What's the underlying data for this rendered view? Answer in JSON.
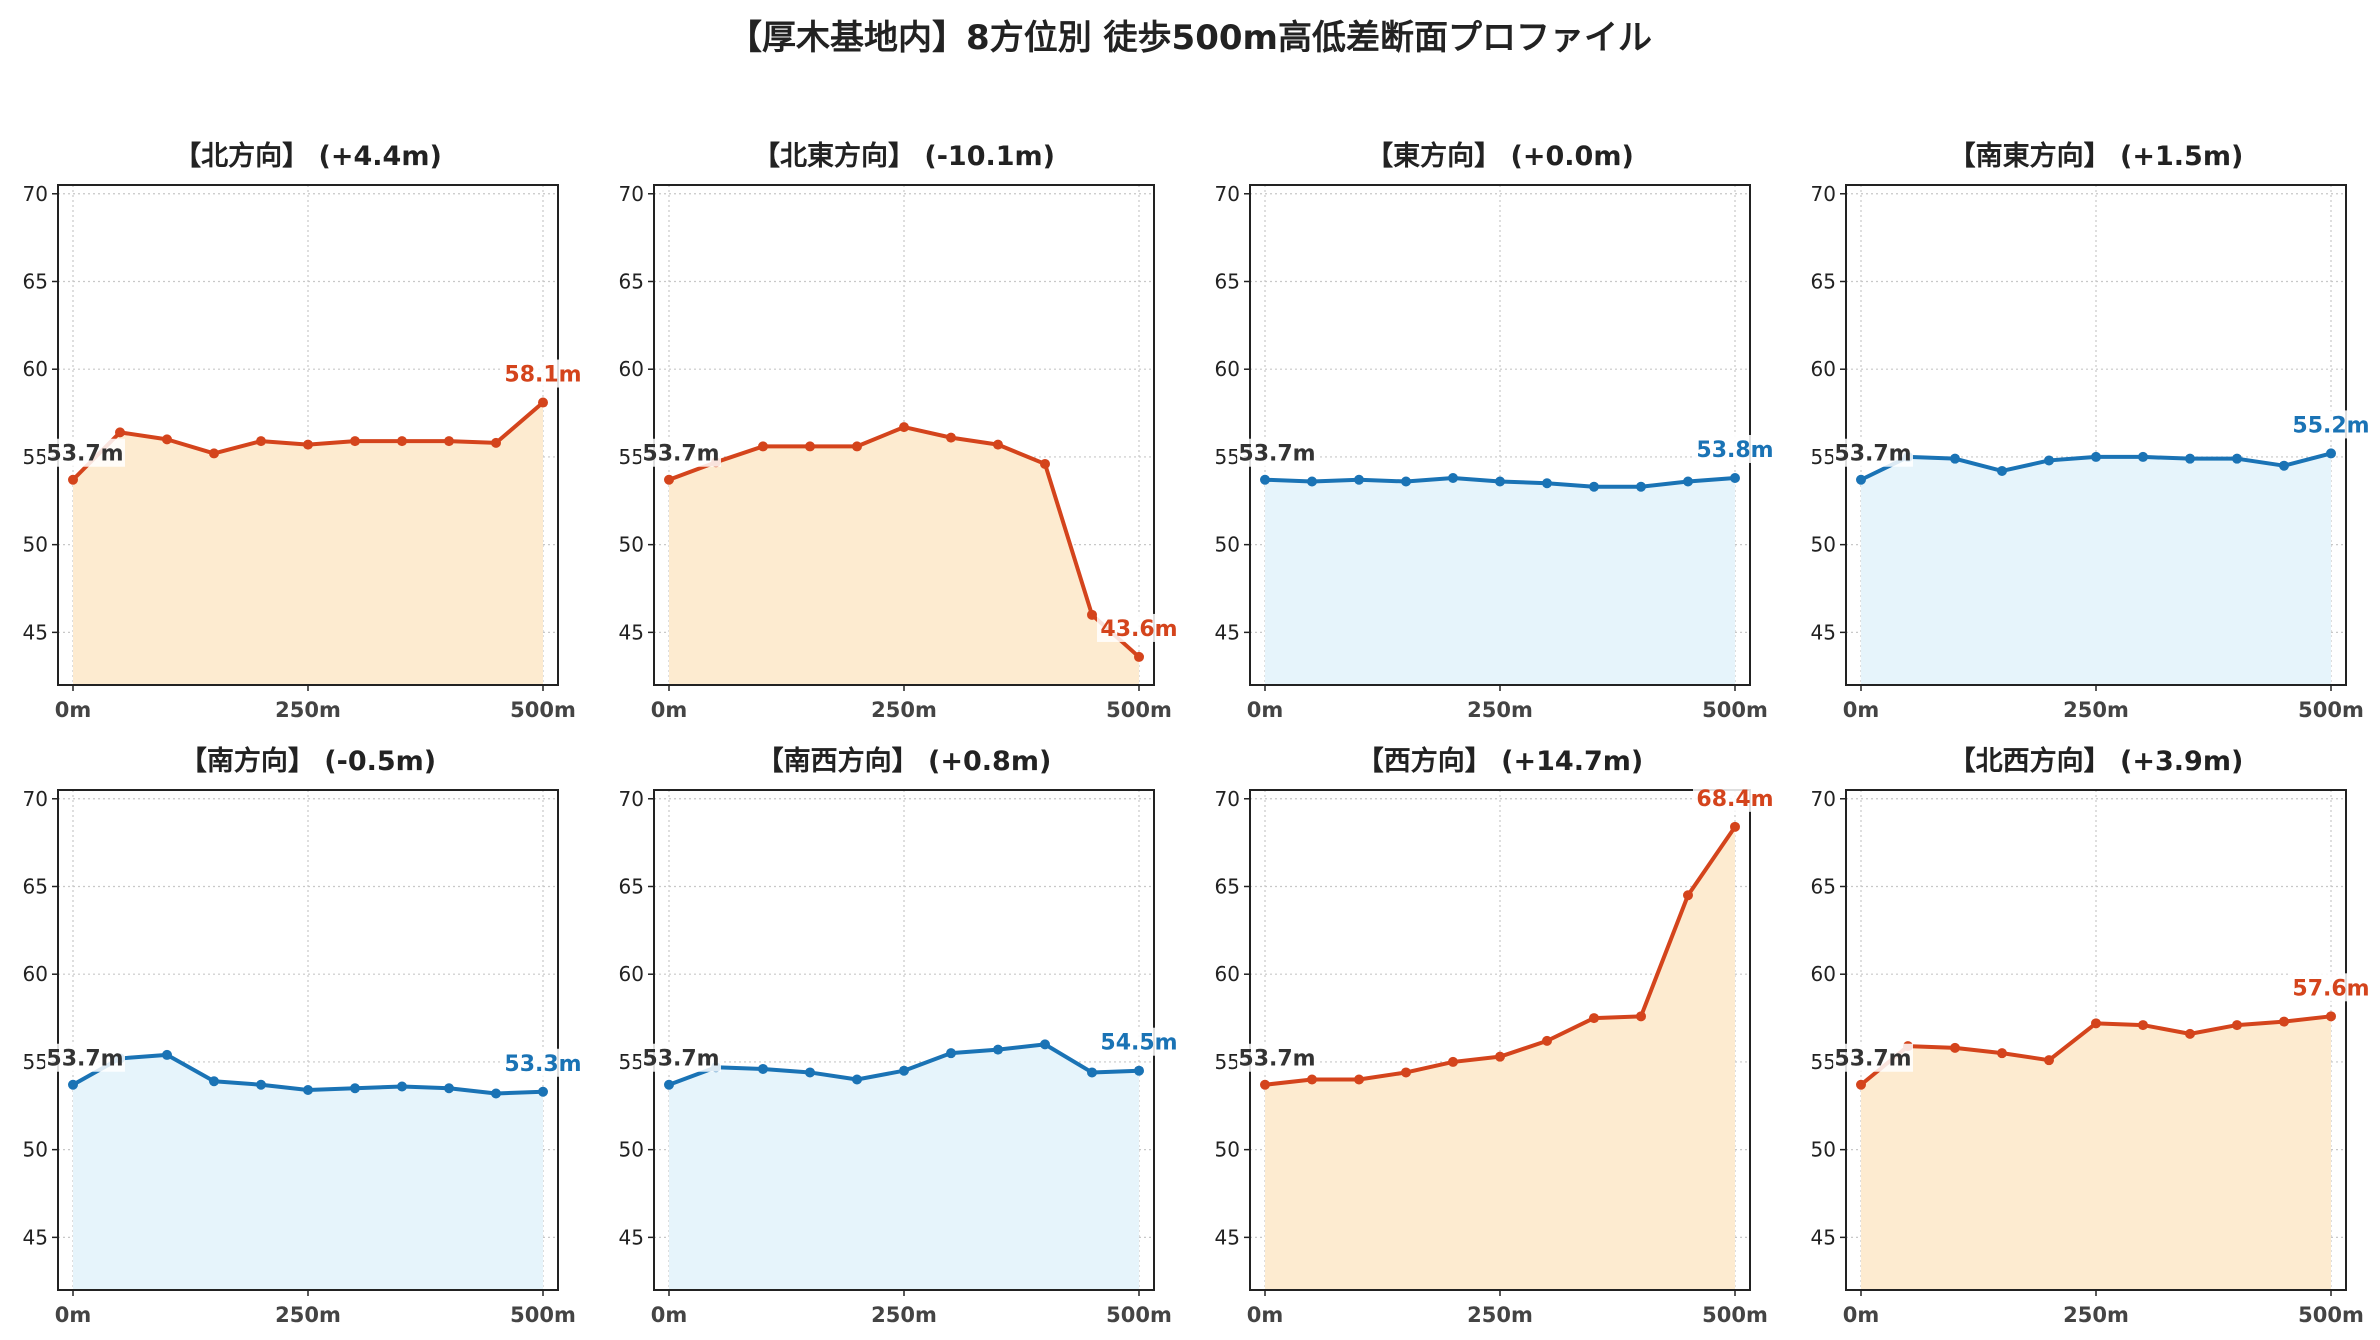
{
  "title": "【厚木基地内】8方位別 徒歩500m高低差断面プロファイル",
  "colors": {
    "up_line": "#d4441c",
    "up_fill": "#fdebd0",
    "down_line": "#1a73b5",
    "down_fill": "#e6f4fb",
    "grid": "#c8c8c8",
    "axis": "#222222",
    "start_label": "#333333"
  },
  "chart_data": [
    {
      "type": "area",
      "title": "【北方向】 (+4.4m)",
      "trend": "up",
      "x": [
        0,
        50,
        100,
        150,
        200,
        250,
        300,
        350,
        400,
        450,
        500
      ],
      "values": [
        53.7,
        56.4,
        56.0,
        55.2,
        55.9,
        55.7,
        55.9,
        55.9,
        55.9,
        55.8,
        58.1
      ],
      "xticks": [
        "0m",
        "250m",
        "500m"
      ],
      "yticks": [
        45,
        50,
        55,
        60,
        65,
        70
      ],
      "ylim": [
        42,
        70.5
      ],
      "xlim": [
        0,
        500
      ],
      "start_label": "53.7m",
      "end_label": "58.1m",
      "grid": true
    },
    {
      "type": "area",
      "title": "【北東方向】 (-10.1m)",
      "trend": "up",
      "x": [
        0,
        50,
        100,
        150,
        200,
        250,
        300,
        350,
        400,
        450,
        500
      ],
      "values": [
        53.7,
        54.7,
        55.6,
        55.6,
        55.6,
        56.7,
        56.1,
        55.7,
        54.6,
        46.0,
        43.6
      ],
      "xticks": [
        "0m",
        "250m",
        "500m"
      ],
      "yticks": [
        45,
        50,
        55,
        60,
        65,
        70
      ],
      "ylim": [
        42,
        70.5
      ],
      "xlim": [
        0,
        500
      ],
      "start_label": "53.7m",
      "end_label": "43.6m",
      "grid": true
    },
    {
      "type": "area",
      "title": "【東方向】 (+0.0m)",
      "trend": "down",
      "x": [
        0,
        50,
        100,
        150,
        200,
        250,
        300,
        350,
        400,
        450,
        500
      ],
      "values": [
        53.7,
        53.6,
        53.7,
        53.6,
        53.8,
        53.6,
        53.5,
        53.3,
        53.3,
        53.6,
        53.8
      ],
      "xticks": [
        "0m",
        "250m",
        "500m"
      ],
      "yticks": [
        45,
        50,
        55,
        60,
        65,
        70
      ],
      "ylim": [
        42,
        70.5
      ],
      "xlim": [
        0,
        500
      ],
      "start_label": "53.7m",
      "end_label": "53.8m",
      "grid": true
    },
    {
      "type": "area",
      "title": "【南東方向】 (+1.5m)",
      "trend": "down",
      "x": [
        0,
        50,
        100,
        150,
        200,
        250,
        300,
        350,
        400,
        450,
        500
      ],
      "values": [
        53.7,
        55.0,
        54.9,
        54.2,
        54.8,
        55.0,
        55.0,
        54.9,
        54.9,
        54.5,
        55.2
      ],
      "xticks": [
        "0m",
        "250m",
        "500m"
      ],
      "yticks": [
        45,
        50,
        55,
        60,
        65,
        70
      ],
      "ylim": [
        42,
        70.5
      ],
      "xlim": [
        0,
        500
      ],
      "start_label": "53.7m",
      "end_label": "55.2m",
      "grid": true
    },
    {
      "type": "area",
      "title": "【南方向】 (-0.5m)",
      "trend": "down",
      "x": [
        0,
        50,
        100,
        150,
        200,
        250,
        300,
        350,
        400,
        450,
        500
      ],
      "values": [
        53.7,
        55.2,
        55.4,
        53.9,
        53.7,
        53.4,
        53.5,
        53.6,
        53.5,
        53.2,
        53.3
      ],
      "xticks": [
        "0m",
        "250m",
        "500m"
      ],
      "yticks": [
        45,
        50,
        55,
        60,
        65,
        70
      ],
      "ylim": [
        42,
        70.5
      ],
      "xlim": [
        0,
        500
      ],
      "start_label": "53.7m",
      "end_label": "53.3m",
      "grid": true
    },
    {
      "type": "area",
      "title": "【南西方向】 (+0.8m)",
      "trend": "down",
      "x": [
        0,
        50,
        100,
        150,
        200,
        250,
        300,
        350,
        400,
        450,
        500
      ],
      "values": [
        53.7,
        54.7,
        54.6,
        54.4,
        54.0,
        54.5,
        55.5,
        55.7,
        56.0,
        54.4,
        54.5
      ],
      "xticks": [
        "0m",
        "250m",
        "500m"
      ],
      "yticks": [
        45,
        50,
        55,
        60,
        65,
        70
      ],
      "ylim": [
        42,
        70.5
      ],
      "xlim": [
        0,
        500
      ],
      "start_label": "53.7m",
      "end_label": "54.5m",
      "grid": true
    },
    {
      "type": "area",
      "title": "【西方向】 (+14.7m)",
      "trend": "up",
      "x": [
        0,
        50,
        100,
        150,
        200,
        250,
        300,
        350,
        400,
        450,
        500
      ],
      "values": [
        53.7,
        54.0,
        54.0,
        54.4,
        55.0,
        55.3,
        56.2,
        57.5,
        57.6,
        64.5,
        68.4
      ],
      "xticks": [
        "0m",
        "250m",
        "500m"
      ],
      "yticks": [
        45,
        50,
        55,
        60,
        65,
        70
      ],
      "ylim": [
        42,
        70.5
      ],
      "xlim": [
        0,
        500
      ],
      "start_label": "53.7m",
      "end_label": "68.4m",
      "grid": true
    },
    {
      "type": "area",
      "title": "【北西方向】 (+3.9m)",
      "trend": "up",
      "x": [
        0,
        50,
        100,
        150,
        200,
        250,
        300,
        350,
        400,
        450,
        500
      ],
      "values": [
        53.7,
        55.9,
        55.8,
        55.5,
        55.1,
        57.2,
        57.1,
        56.6,
        57.1,
        57.3,
        57.6
      ],
      "xticks": [
        "0m",
        "250m",
        "500m"
      ],
      "yticks": [
        45,
        50,
        55,
        60,
        65,
        70
      ],
      "ylim": [
        42,
        70.5
      ],
      "xlim": [
        0,
        500
      ],
      "start_label": "53.7m",
      "end_label": "57.6m",
      "grid": true
    }
  ]
}
